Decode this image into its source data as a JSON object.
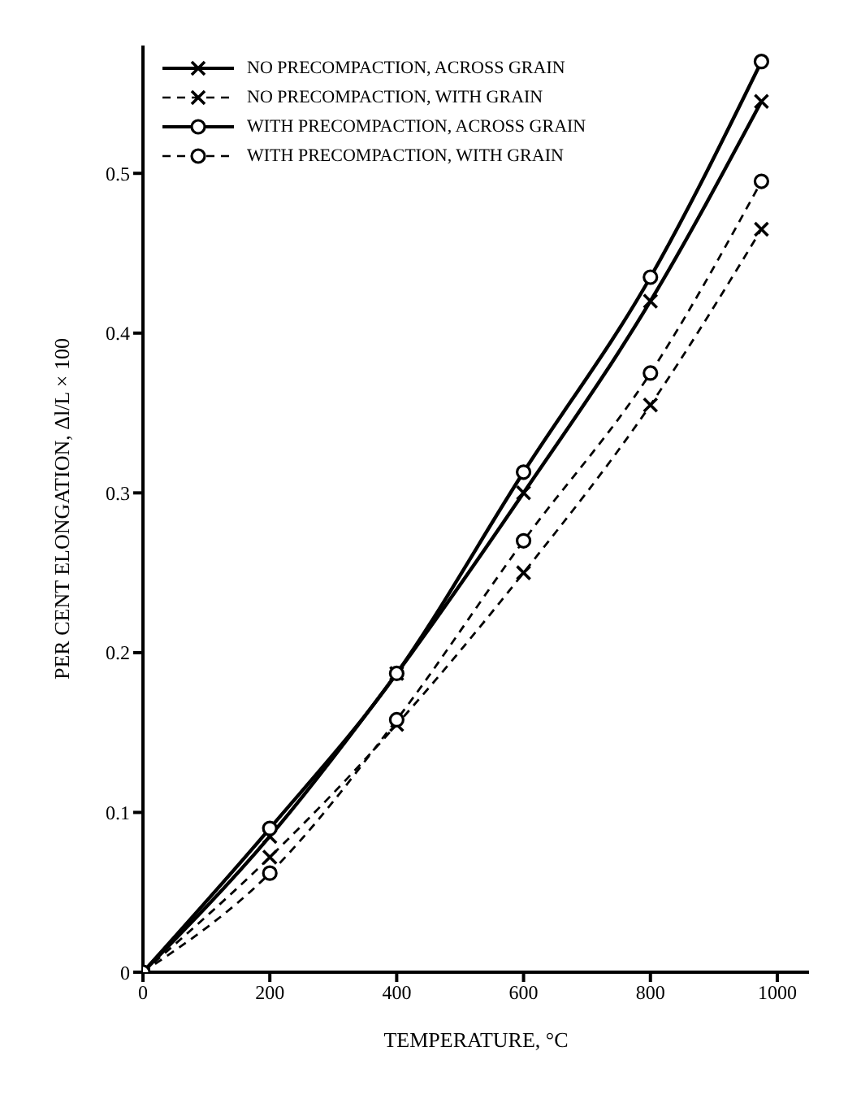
{
  "chart_data": {
    "type": "line",
    "xlabel": "TEMPERATURE, °C",
    "ylabel": "PER CENT ELONGATION, Δl/L × 100",
    "x": [
      0,
      200,
      400,
      600,
      800,
      975
    ],
    "series": [
      {
        "name": "NO PRECOMPACTION, ACROSS GRAIN",
        "color": "#000000",
        "marker": "cross",
        "line_style": "solid",
        "values": [
          0,
          0.085,
          0.187,
          0.3,
          0.42,
          0.545
        ]
      },
      {
        "name": "NO PRECOMPACTION, WITH GRAIN",
        "color": "#000000",
        "marker": "cross",
        "line_style": "dashed",
        "values": [
          0,
          0.072,
          0.155,
          0.25,
          0.355,
          0.465
        ]
      },
      {
        "name": "WITH PRECOMPACTION, ACROSS GRAIN",
        "color": "#000000",
        "marker": "circle",
        "line_style": "solid",
        "values": [
          0,
          0.09,
          0.187,
          0.313,
          0.435,
          0.57
        ]
      },
      {
        "name": "WITH PRECOMPACTION, WITH GRAIN",
        "color": "#000000",
        "marker": "circle",
        "line_style": "dashed",
        "values": [
          0,
          0.062,
          0.158,
          0.27,
          0.375,
          0.495
        ]
      }
    ],
    "xlim": [
      0,
      1050
    ],
    "xticks": [
      0,
      200,
      400,
      600,
      800,
      1000
    ],
    "ylim": [
      0,
      0.58
    ],
    "yticks": [
      0,
      0.1,
      0.2,
      0.3,
      0.4,
      0.5
    ],
    "grid": false,
    "legend": "top left"
  }
}
